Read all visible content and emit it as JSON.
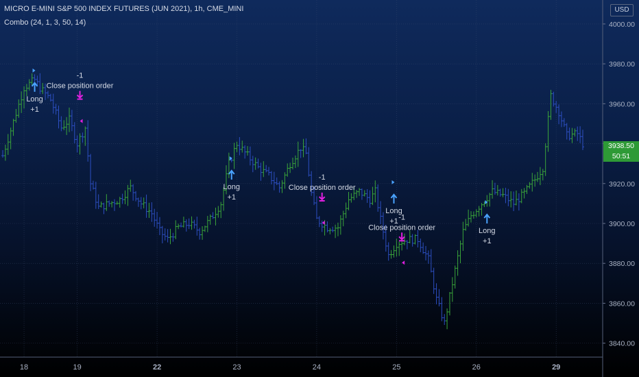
{
  "header": {
    "title": "MICRO E-MINI S&P 500 INDEX FUTURES (JUN 2021), 1h, CME_MINI",
    "indicator": "Combo (24, 1, 3, 50, 14)",
    "currency": "USD"
  },
  "last_price": {
    "price": "3938.50",
    "countdown": "50:51"
  },
  "colors": {
    "up": "#3aa53a",
    "down": "#2d4fc2",
    "long_arrow": "#4aa3ff",
    "close_marker": "#e020e0",
    "price_badge": "#2e9a36"
  },
  "chart_data": {
    "type": "candlestick-bars",
    "y_ticks": [
      "3840.00",
      "3860.00",
      "3880.00",
      "3900.00",
      "3920.00",
      "3940.00",
      "3960.00",
      "3980.00",
      "4000.00"
    ],
    "ylim": [
      3833,
      4012
    ],
    "x_ticks": [
      {
        "label": "18",
        "bold": false,
        "day": 0
      },
      {
        "label": "19",
        "bold": false,
        "day": 1
      },
      {
        "label": "22",
        "bold": true,
        "day": 2
      },
      {
        "label": "23",
        "bold": false,
        "day": 3
      },
      {
        "label": "24",
        "bold": false,
        "day": 4
      },
      {
        "label": "25",
        "bold": false,
        "day": 5
      },
      {
        "label": "26",
        "bold": false,
        "day": 6
      },
      {
        "label": "29",
        "bold": true,
        "day": 7
      }
    ],
    "keypoints": [
      [
        0,
        3934
      ],
      [
        8,
        3968
      ],
      [
        12,
        3972
      ],
      [
        14,
        3968
      ],
      [
        18,
        3962
      ],
      [
        22,
        3948
      ],
      [
        25,
        3952
      ],
      [
        28,
        3940
      ],
      [
        31,
        3948
      ],
      [
        33,
        3920
      ],
      [
        36,
        3908
      ],
      [
        40,
        3910
      ],
      [
        44,
        3912
      ],
      [
        48,
        3918
      ],
      [
        52,
        3910
      ],
      [
        56,
        3905
      ],
      [
        59,
        3896
      ],
      [
        62,
        3892
      ],
      [
        66,
        3898
      ],
      [
        70,
        3900
      ],
      [
        74,
        3896
      ],
      [
        78,
        3902
      ],
      [
        82,
        3910
      ],
      [
        85,
        3930
      ],
      [
        88,
        3940
      ],
      [
        92,
        3934
      ],
      [
        96,
        3928
      ],
      [
        100,
        3924
      ],
      [
        104,
        3918
      ],
      [
        108,
        3930
      ],
      [
        112,
        3938
      ],
      [
        114,
        3935
      ],
      [
        116,
        3915
      ],
      [
        118,
        3902
      ],
      [
        122,
        3898
      ],
      [
        126,
        3898
      ],
      [
        130,
        3912
      ],
      [
        134,
        3916
      ],
      [
        138,
        3912
      ],
      [
        140,
        3916
      ],
      [
        142,
        3902
      ],
      [
        145,
        3884
      ],
      [
        148,
        3890
      ],
      [
        152,
        3892
      ],
      [
        156,
        3892
      ],
      [
        160,
        3882
      ],
      [
        163,
        3862
      ],
      [
        166,
        3850
      ],
      [
        169,
        3870
      ],
      [
        173,
        3896
      ],
      [
        176,
        3904
      ],
      [
        180,
        3910
      ],
      [
        184,
        3916
      ],
      [
        188,
        3914
      ],
      [
        192,
        3910
      ],
      [
        196,
        3915
      ],
      [
        200,
        3922
      ],
      [
        203,
        3928
      ],
      [
        206,
        3964
      ],
      [
        209,
        3956
      ],
      [
        212,
        3944
      ],
      [
        216,
        3945
      ],
      [
        218,
        3940
      ]
    ],
    "bar_span": [
      0,
      218
    ],
    "day_bar_index": [
      8,
      28,
      58,
      88,
      118,
      148,
      178,
      208
    ],
    "signals": [
      {
        "kind": "long",
        "bar": 12,
        "price": 3966,
        "label": "Long",
        "qty": "+1"
      },
      {
        "kind": "close",
        "bar": 29,
        "price": 3963,
        "label": "Close position order",
        "qty": "-1"
      },
      {
        "kind": "long",
        "bar": 86,
        "price": 3922,
        "label": "Long",
        "qty": "+1"
      },
      {
        "kind": "close",
        "bar": 120,
        "price": 3912,
        "label": "Close position order",
        "qty": "-1"
      },
      {
        "kind": "long",
        "bar": 147,
        "price": 3910,
        "label": "Long",
        "qty": "+1"
      },
      {
        "kind": "close",
        "bar": 150,
        "price": 3892,
        "label": "Close position order",
        "qty": "-1"
      },
      {
        "kind": "long",
        "bar": 182,
        "price": 3900,
        "label": "Long",
        "qty": "+1"
      }
    ]
  }
}
